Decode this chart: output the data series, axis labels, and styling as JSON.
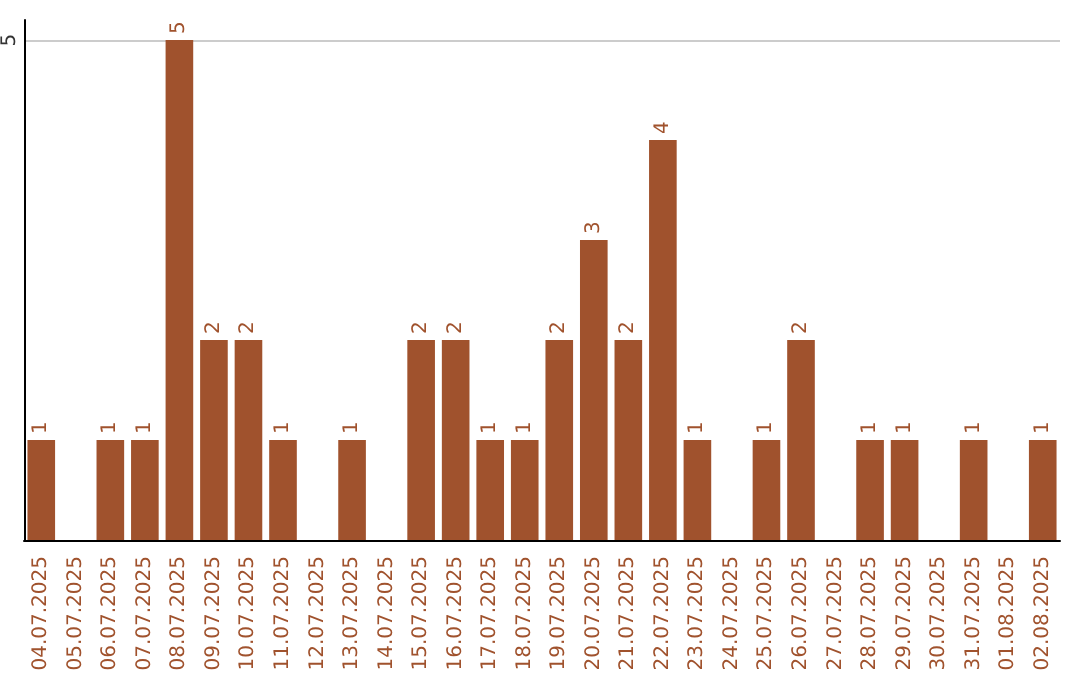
{
  "chart_data": {
    "type": "bar",
    "categories": [
      "04.07.2025",
      "05.07.2025",
      "06.07.2025",
      "07.07.2025",
      "08.07.2025",
      "09.07.2025",
      "10.07.2025",
      "11.07.2025",
      "12.07.2025",
      "13.07.2025",
      "14.07.2025",
      "15.07.2025",
      "16.07.2025",
      "17.07.2025",
      "18.07.2025",
      "19.07.2025",
      "20.07.2025",
      "21.07.2025",
      "22.07.2025",
      "23.07.2025",
      "24.07.2025",
      "25.07.2025",
      "26.07.2025",
      "27.07.2025",
      "28.07.2025",
      "29.07.2025",
      "30.07.2025",
      "31.07.2025",
      "01.08.2025",
      "02.08.2025"
    ],
    "values": [
      1,
      0,
      1,
      1,
      5,
      2,
      2,
      1,
      0,
      1,
      0,
      2,
      2,
      1,
      1,
      2,
      3,
      2,
      4,
      1,
      0,
      1,
      2,
      0,
      1,
      1,
      0,
      1,
      0,
      1
    ],
    "value_labels": [
      "1",
      null,
      "1",
      "1",
      "5",
      "2",
      "2",
      "1",
      null,
      "1",
      null,
      "2",
      "2",
      "1",
      "1",
      "2",
      "3",
      "2",
      "4",
      "1",
      null,
      "1",
      "2",
      null,
      "1",
      "1",
      null,
      "1",
      null,
      "1"
    ],
    "color": "#a0522d",
    "ylim": [
      0,
      5.2
    ],
    "yticks": [
      5
    ],
    "grid": "y"
  }
}
